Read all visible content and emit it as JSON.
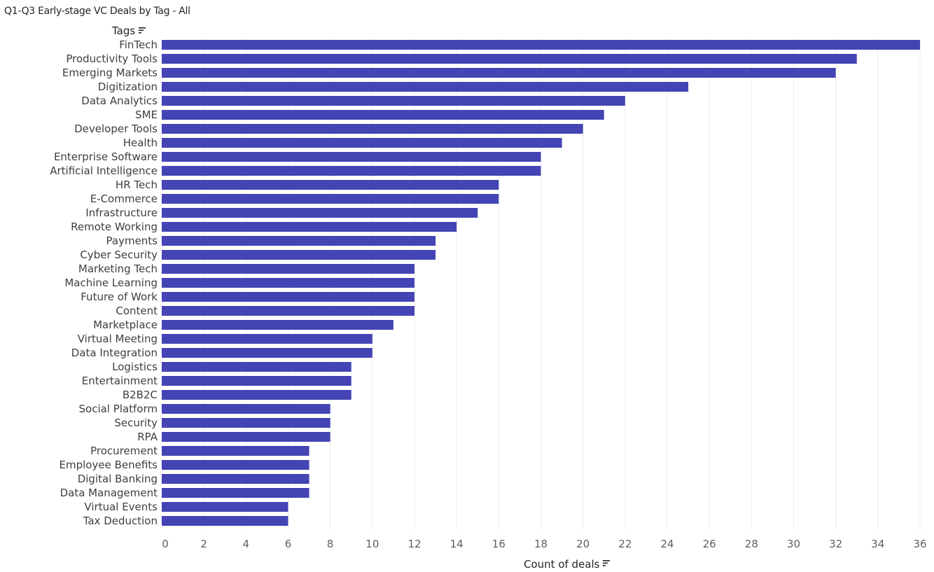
{
  "header": {
    "title": "Q1-Q3 Early-stage VC Deals by Tag - All"
  },
  "icons": {
    "sort": "sort-lines-icon"
  },
  "colors": {
    "bar": "#4444B5",
    "grid": "#EBEBEB",
    "text": "#605E5C"
  },
  "chart_data": {
    "type": "bar",
    "orientation": "horizontal",
    "title": "Q1-Q3 Early-stage VC Deals by Tag - All",
    "ylabel": "Tags",
    "xlabel": "Count of deals",
    "xlim": [
      0,
      36
    ],
    "x_ticks": [
      "0",
      "2",
      "4",
      "6",
      "8",
      "10",
      "12",
      "14",
      "16",
      "18",
      "20",
      "22",
      "24",
      "26",
      "28",
      "30",
      "32",
      "34",
      "36"
    ],
    "grid": "vertical",
    "categories": [
      "FinTech",
      "Productivity Tools",
      "Emerging Markets",
      "Digitization",
      "Data Analytics",
      "SME",
      "Developer Tools",
      "Health",
      "Enterprise Software",
      "Artificial Intelligence",
      "HR Tech",
      "E-Commerce",
      "Infrastructure",
      "Remote Working",
      "Payments",
      "Cyber Security",
      "Marketing Tech",
      "Machine Learning",
      "Future of Work",
      "Content",
      "Marketplace",
      "Virtual Meeting",
      "Data Integration",
      "Logistics",
      "Entertainment",
      "B2B2C",
      "Social Platform",
      "Security",
      "RPA",
      "Procurement",
      "Employee Benefits",
      "Digital Banking",
      "Data Management",
      "Virtual Events",
      "Tax Deduction"
    ],
    "values": [
      36,
      33,
      32,
      25,
      22,
      21,
      20,
      19,
      18,
      18,
      16,
      16,
      15,
      14,
      13,
      13,
      12,
      12,
      12,
      12,
      11,
      10,
      10,
      9,
      9,
      9,
      8,
      8,
      8,
      7,
      7,
      7,
      7,
      6,
      6
    ]
  }
}
